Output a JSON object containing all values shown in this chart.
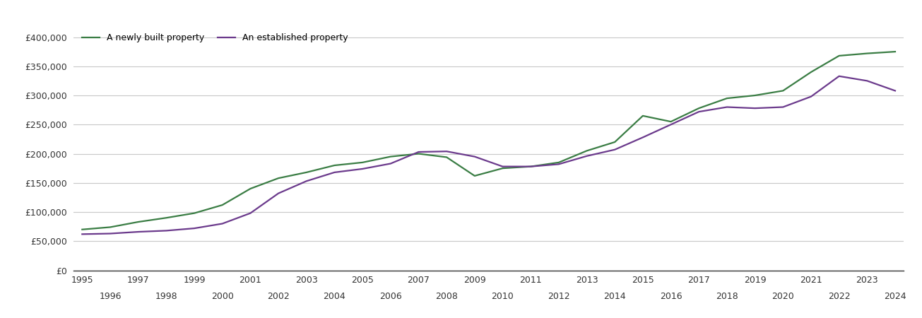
{
  "legend_new": "A newly built property",
  "legend_established": "An established property",
  "color_new": "#3a7d44",
  "color_established": "#6b3a8c",
  "line_width": 1.6,
  "background_color": "#ffffff",
  "grid_color": "#c8c8c8",
  "ylim": [
    0,
    420000
  ],
  "ytick_step": 50000,
  "years": [
    1995,
    1996,
    1997,
    1998,
    1999,
    2000,
    2001,
    2002,
    2003,
    2004,
    2005,
    2006,
    2007,
    2008,
    2009,
    2010,
    2011,
    2012,
    2013,
    2014,
    2015,
    2016,
    2017,
    2018,
    2019,
    2020,
    2021,
    2022,
    2023,
    2024
  ],
  "new_prices": [
    70000,
    74000,
    83000,
    90000,
    98000,
    112000,
    140000,
    158000,
    168000,
    180000,
    185000,
    195000,
    200000,
    194000,
    162000,
    175000,
    178000,
    185000,
    205000,
    220000,
    265000,
    255000,
    278000,
    295000,
    300000,
    308000,
    340000,
    368000,
    372000,
    375000
  ],
  "est_prices": [
    62000,
    63000,
    66000,
    68000,
    72000,
    80000,
    98000,
    132000,
    153000,
    168000,
    174000,
    183000,
    203000,
    204000,
    195000,
    178000,
    178000,
    182000,
    196000,
    207000,
    228000,
    250000,
    272000,
    280000,
    278000,
    280000,
    298000,
    333000,
    325000,
    308000
  ]
}
